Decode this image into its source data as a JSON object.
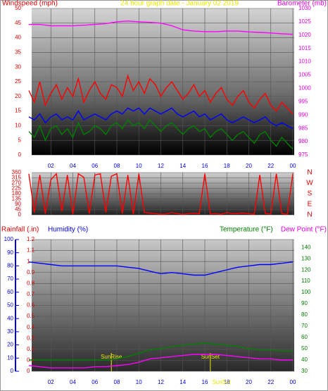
{
  "chart_data": [
    {
      "type": "line",
      "title": "24 hour graph date - January 02 2019",
      "ylabel": "Windspeed (mph)",
      "y2label": "Barometer (mb)",
      "x": [
        0,
        0.5,
        1,
        1.5,
        2,
        2.5,
        3,
        3.5,
        4,
        4.5,
        5,
        5.5,
        6,
        6.5,
        7,
        7.5,
        8,
        8.5,
        9,
        9.5,
        10,
        10.5,
        11,
        11.5,
        12,
        12.5,
        13,
        13.5,
        14,
        14.5,
        15,
        15.5,
        16,
        16.5,
        17,
        17.5,
        18,
        18.5,
        19,
        19.5,
        20,
        20.5,
        21,
        21.5,
        22,
        22.5,
        23,
        23.5,
        24
      ],
      "xlim": [
        0,
        24
      ],
      "xticks": [
        {
          "value": 2,
          "label": "02"
        },
        {
          "value": 4,
          "label": "04"
        },
        {
          "value": 6,
          "label": "06"
        },
        {
          "value": 8,
          "label": "08"
        },
        10,
        12,
        14,
        16,
        18,
        20,
        22,
        {
          "value": 24,
          "label": "00"
        }
      ],
      "ylim": [
        0,
        50
      ],
      "yticks": [
        0,
        5,
        10,
        15,
        20,
        25,
        30,
        35,
        40,
        45,
        50
      ],
      "y2lim": [
        975,
        1030
      ],
      "y2ticks": [
        975,
        980,
        985,
        990,
        995,
        1000,
        1005,
        1010,
        1015,
        1020,
        1025,
        1030
      ],
      "grid": true,
      "series": [
        {
          "color": "#ff0000",
          "values": [
            22,
            18,
            25,
            17,
            21,
            24,
            19,
            23,
            20,
            26,
            18,
            22,
            25,
            21,
            19,
            24,
            23,
            20,
            27,
            22,
            25,
            21,
            26,
            24,
            20,
            23,
            25,
            22,
            19,
            21,
            24,
            20,
            22,
            18,
            21,
            23,
            19,
            17,
            20,
            22,
            18,
            16,
            19,
            21,
            17,
            15,
            18,
            16,
            14
          ]
        },
        {
          "color": "#0000ff",
          "values": [
            13,
            12,
            14,
            11,
            13,
            14,
            12,
            13,
            12,
            15,
            12,
            13,
            14,
            13,
            12,
            14,
            15,
            14,
            16,
            15,
            16,
            14,
            16,
            15,
            14,
            15,
            16,
            14,
            13,
            14,
            15,
            13,
            14,
            12,
            13,
            14,
            12,
            11,
            12,
            13,
            12,
            11,
            12,
            13,
            11,
            10,
            11,
            10,
            9
          ]
        },
        {
          "color": "#008000",
          "values": [
            8,
            6,
            10,
            5,
            9,
            10,
            7,
            9,
            6,
            11,
            7,
            8,
            10,
            9,
            7,
            10,
            11,
            9,
            12,
            10,
            11,
            9,
            12,
            10,
            8,
            10,
            11,
            9,
            7,
            9,
            10,
            8,
            9,
            6,
            8,
            9,
            7,
            5,
            7,
            8,
            6,
            4,
            7,
            8,
            5,
            3,
            6,
            4,
            2
          ]
        },
        {
          "color": "#ff00ff",
          "axis": "y2",
          "x": [
            0,
            1,
            2,
            3,
            4,
            5,
            6,
            7,
            8,
            9,
            10,
            11,
            12,
            13,
            14,
            15,
            16,
            17,
            18,
            19,
            20,
            21,
            22,
            23,
            24
          ],
          "values": [
            1024,
            1024,
            1023.5,
            1023.5,
            1023.5,
            1023.7,
            1024,
            1024.3,
            1025,
            1025.3,
            1025,
            1024.8,
            1024.5,
            1023.5,
            1022,
            1021.5,
            1021.3,
            1021.3,
            1021.5,
            1021.5,
            1021.2,
            1021,
            1020.8,
            1020.5,
            1020.3
          ]
        }
      ]
    },
    {
      "type": "line",
      "x": [
        0,
        0.5,
        1,
        1.5,
        2,
        2.5,
        3,
        3.5,
        4,
        4.5,
        5,
        5.5,
        6,
        6.5,
        7,
        7.5,
        8,
        8.5,
        9,
        9.5,
        10,
        10.5,
        11,
        11.5,
        12,
        12.5,
        13,
        13.5,
        14,
        14.5,
        15,
        15.5,
        16,
        16.5,
        17,
        17.5,
        18,
        18.5,
        19,
        19.5,
        20,
        20.5,
        21,
        21.5,
        22,
        22.5,
        23,
        23.5,
        24
      ],
      "xlim": [
        0,
        24
      ],
      "xticks": [
        2,
        4,
        6,
        8,
        10,
        12,
        14,
        16,
        18,
        20,
        22,
        24
      ],
      "ylim": [
        0,
        360
      ],
      "yticks": [
        0,
        45,
        90,
        135,
        180,
        225,
        270,
        315,
        360
      ],
      "y2lim": [
        0,
        360
      ],
      "y2ticks": [
        {
          "value": 360,
          "label": "N"
        },
        {
          "value": 270,
          "label": "W"
        },
        {
          "value": 180,
          "label": "S"
        },
        {
          "value": 90,
          "label": "E"
        },
        {
          "value": 0,
          "label": "N"
        }
      ],
      "grid": true,
      "series": [
        {
          "color": "#ff0000",
          "values": [
            350,
            20,
            340,
            10,
            300,
            350,
            30,
            340,
            5,
            350,
            320,
            10,
            340,
            350,
            20,
            330,
            350,
            10,
            340,
            5,
            350,
            20,
            15,
            10,
            5,
            8,
            20,
            10,
            5,
            10,
            15,
            10,
            350,
            8,
            10,
            5,
            20,
            10,
            12,
            15,
            10,
            5,
            340,
            10,
            8,
            350,
            10,
            5,
            350
          ]
        }
      ]
    },
    {
      "type": "line",
      "ylabel": "Rainfall (.in)",
      "humidity_label": "Humidity (%)",
      "y2label": "Temperature (°F)",
      "dewpoint_label": "Dew Point (°F)",
      "x": [
        0,
        1,
        2,
        3,
        4,
        5,
        6,
        7,
        8,
        9,
        10,
        11,
        12,
        13,
        14,
        15,
        16,
        17,
        18,
        19,
        20,
        21,
        22,
        23,
        24
      ],
      "xlim": [
        0,
        24
      ],
      "xticks": [
        {
          "value": 2,
          "label": "02"
        },
        {
          "value": 4,
          "label": "04"
        },
        {
          "value": 6,
          "label": "06"
        },
        {
          "value": 8,
          "label": "08"
        },
        10,
        12,
        14,
        16,
        18,
        20,
        22,
        {
          "value": 24,
          "label": "00"
        }
      ],
      "ylim": [
        0,
        1.2
      ],
      "yticks": [
        0,
        0.1,
        0.2,
        0.3,
        0.4,
        0.5,
        0.6,
        0.7,
        0.8,
        0.9,
        1,
        1.1,
        1.2
      ],
      "humidity_lim": [
        0,
        100
      ],
      "humidity_ticks": [
        0,
        10,
        20,
        30,
        40,
        50,
        60,
        70,
        80,
        90,
        100
      ],
      "y2lim": [
        30,
        147
      ],
      "y2ticks": [
        30,
        40,
        50,
        60,
        70,
        80,
        90,
        100,
        110,
        120,
        130,
        140
      ],
      "grid": true,
      "annotations": [
        {
          "text": "SunRise",
          "x": 7.5
        },
        {
          "text": "SunSet",
          "x": 16.5
        }
      ],
      "axis_annotation": {
        "text": "SunSet",
        "x": 17.5
      },
      "series": [
        {
          "color": "#0000ff",
          "axis": "humidity",
          "values": [
            83,
            82,
            81,
            80,
            80,
            80,
            80,
            80,
            80,
            79,
            78,
            76,
            74,
            75,
            74,
            73,
            73,
            75,
            77,
            79,
            80,
            81,
            81,
            82,
            83
          ]
        },
        {
          "color": "#008000",
          "axis": "y2",
          "values": [
            40,
            40,
            40,
            40,
            40,
            40,
            40,
            40,
            41,
            43,
            46,
            49,
            50,
            52,
            53,
            54,
            55,
            54,
            53,
            52,
            50,
            49,
            49,
            48,
            48
          ]
        },
        {
          "color": "#ff00ff",
          "axis": "y2",
          "values": [
            35,
            34,
            33,
            33,
            33,
            33,
            34,
            34,
            35,
            36,
            38,
            41,
            42,
            43,
            44,
            45,
            45,
            45,
            44,
            43,
            42,
            41,
            41,
            40,
            40
          ]
        }
      ]
    }
  ]
}
